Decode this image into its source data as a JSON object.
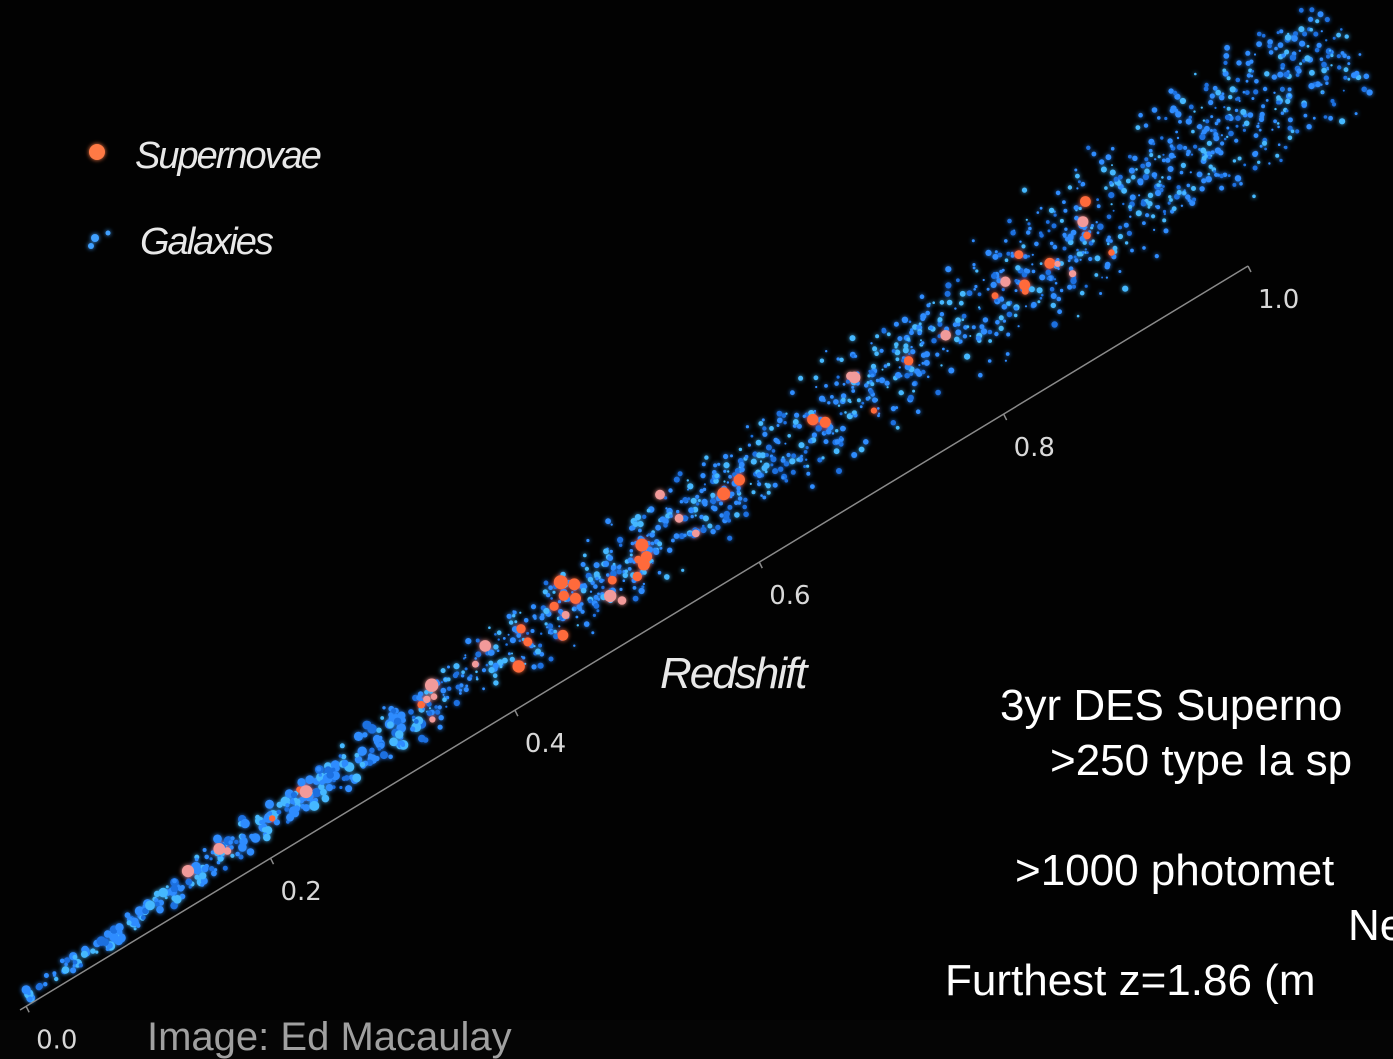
{
  "legend": {
    "items": [
      "Supernovae",
      "Galaxies"
    ]
  },
  "axis": {
    "label": "Redshift",
    "ticks": [
      "0.0",
      "0.2",
      "0.4",
      "0.6",
      "0.8",
      "1.0"
    ]
  },
  "notes": [
    "3yr DES Superno",
    ">250 type Ia sp",
    ">1000 photomet",
    "Ne",
    "Furthest z=1.86 (m"
  ],
  "credit": "Image: Ed Macaulay"
}
